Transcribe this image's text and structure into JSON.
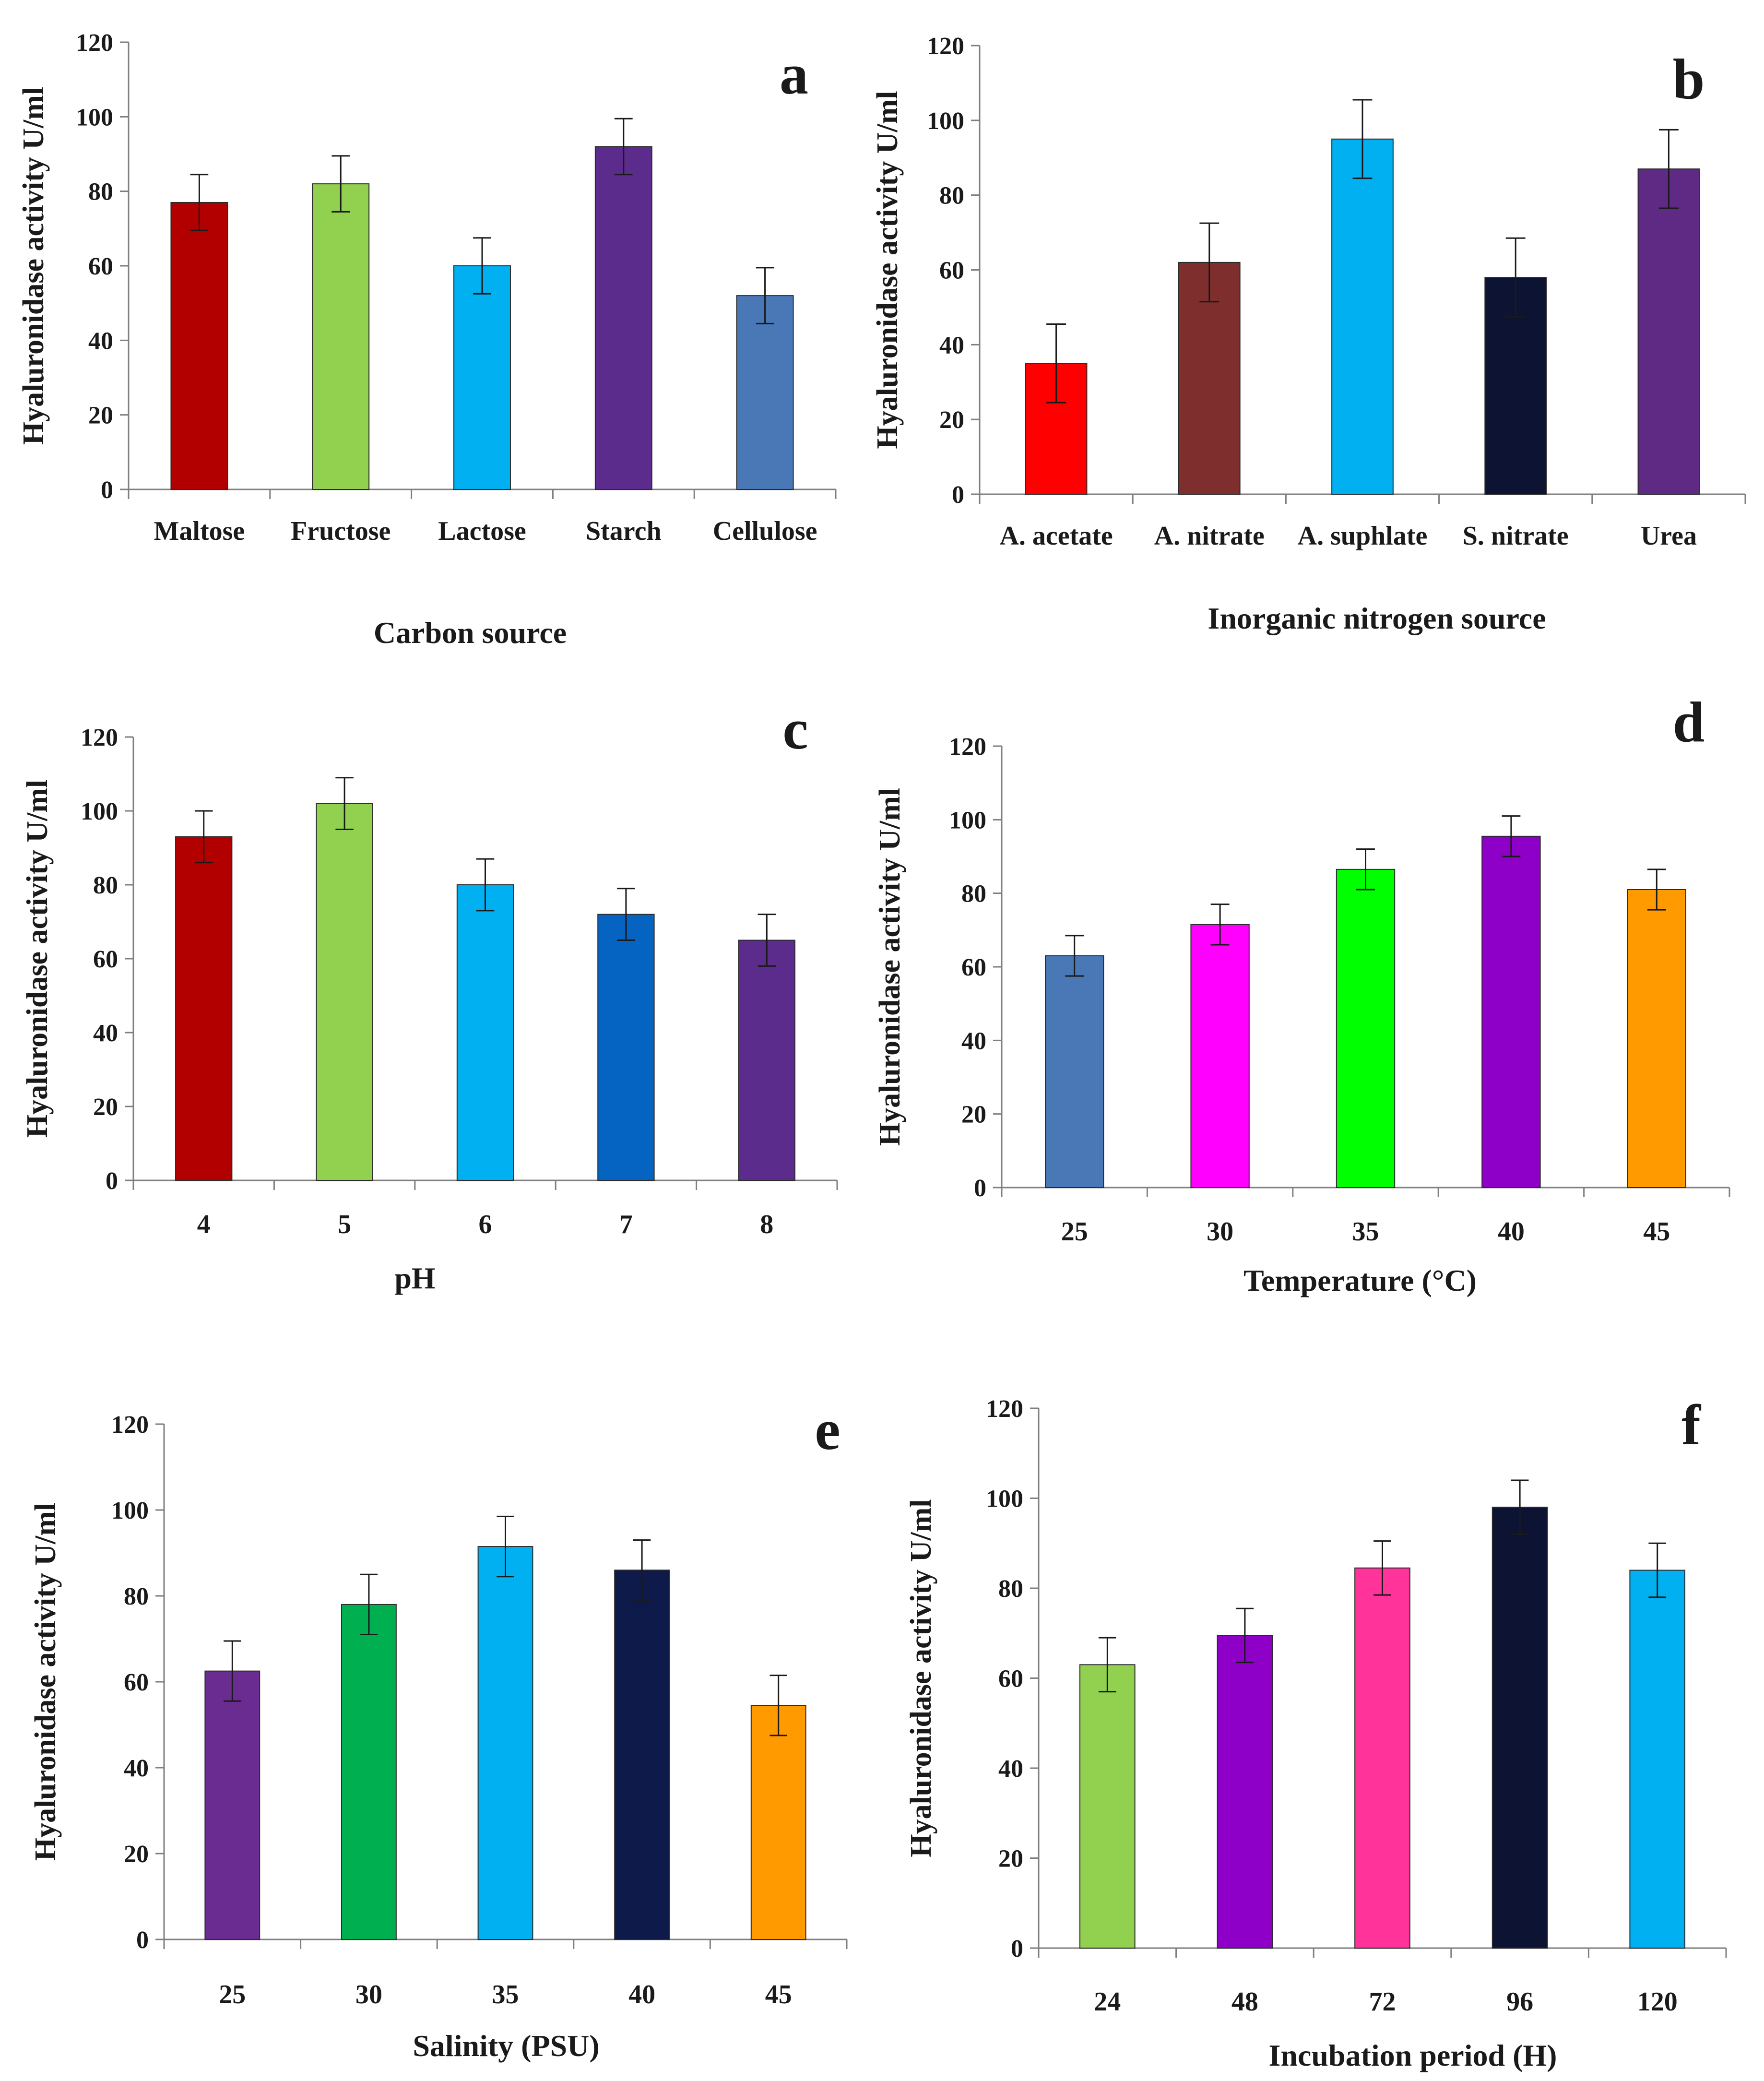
{
  "chart_data": [
    {
      "type": "bar",
      "panel": "a",
      "title": "",
      "xlabel": "Carbon source",
      "ylabel": "Hyaluronidase activity U/ml",
      "ylim": [
        0,
        120
      ],
      "yticks": [
        0,
        20,
        40,
        60,
        80,
        100,
        120
      ],
      "categories": [
        "Maltose",
        "Fructose",
        "Lactose",
        "Starch",
        "Cellulose"
      ],
      "values": [
        77,
        82,
        60,
        92,
        52
      ],
      "errors": [
        7.5,
        7.5,
        7.5,
        7.5,
        7.5
      ],
      "colors": [
        "#b20000",
        "#92d050",
        "#00b0f0",
        "#5b2c8c",
        "#4a78b7"
      ]
    },
    {
      "type": "bar",
      "panel": "b",
      "title": "",
      "xlabel": "Inorganic nitrogen source",
      "ylabel": "Hyaluronidase activity U/ml",
      "ylim": [
        0,
        120
      ],
      "yticks": [
        0,
        20,
        40,
        60,
        80,
        100,
        120
      ],
      "categories": [
        "A. acetate",
        "A. nitrate",
        "A. suphlate",
        "S. nitrate",
        "Urea"
      ],
      "values": [
        35,
        62,
        95,
        58,
        87
      ],
      "errors": [
        10.5,
        10.5,
        10.5,
        10.5,
        10.5
      ],
      "colors": [
        "#ff0000",
        "#7f2e2e",
        "#00b0f0",
        "#0d1433",
        "#5e2a84"
      ]
    },
    {
      "type": "bar",
      "panel": "c",
      "title": "",
      "xlabel": "pH",
      "ylabel": "Hyaluronidase activity U/ml",
      "ylim": [
        0,
        120
      ],
      "yticks": [
        0,
        20,
        40,
        60,
        80,
        100,
        120
      ],
      "categories": [
        "4",
        "5",
        "6",
        "7",
        "8"
      ],
      "values": [
        93,
        102,
        80,
        72,
        65
      ],
      "errors": [
        7,
        7,
        7,
        7,
        7
      ],
      "colors": [
        "#b20000",
        "#92d050",
        "#00b0f0",
        "#0563c1",
        "#5b2c8c"
      ]
    },
    {
      "type": "bar",
      "panel": "d",
      "title": "",
      "xlabel": "Temperature (°C)",
      "ylabel": "Hyaluronidase activity U/ml",
      "ylim": [
        0,
        120
      ],
      "yticks": [
        0,
        20,
        40,
        60,
        80,
        100,
        120
      ],
      "categories": [
        "25",
        "30",
        "35",
        "40",
        "45"
      ],
      "values": [
        63,
        71.5,
        86.5,
        95.5,
        81
      ],
      "errors": [
        5.5,
        5.5,
        5.5,
        5.5,
        5.5
      ],
      "colors": [
        "#4a78b7",
        "#ff00ff",
        "#00ff00",
        "#8e00c8",
        "#ff9a00"
      ]
    },
    {
      "type": "bar",
      "panel": "e",
      "title": "",
      "xlabel": "Salinity (PSU)",
      "ylabel": "Hyaluronidase activity U/ml",
      "ylim": [
        0,
        120
      ],
      "yticks": [
        0,
        20,
        40,
        60,
        80,
        100,
        120
      ],
      "categories": [
        "25",
        "30",
        "35",
        "40",
        "45"
      ],
      "values": [
        62.5,
        78,
        91.5,
        86,
        54.5
      ],
      "errors": [
        7,
        7,
        7,
        7,
        7
      ],
      "colors": [
        "#6a2c91",
        "#00b050",
        "#00b0f0",
        "#0d1a4a",
        "#ff9a00"
      ]
    },
    {
      "type": "bar",
      "panel": "f",
      "title": "",
      "xlabel": "Incubation period (H)",
      "ylabel": "Hyaluronidase activity U/ml",
      "ylim": [
        0,
        120
      ],
      "yticks": [
        0,
        20,
        40,
        60,
        80,
        100,
        120
      ],
      "categories": [
        "24",
        "48",
        "72",
        "96",
        "120"
      ],
      "values": [
        63,
        69.5,
        84.5,
        98,
        84
      ],
      "errors": [
        6,
        6,
        6,
        6,
        6
      ],
      "colors": [
        "#92d050",
        "#8e00c8",
        "#ff3399",
        "#0d1433",
        "#00b0f0"
      ]
    }
  ]
}
